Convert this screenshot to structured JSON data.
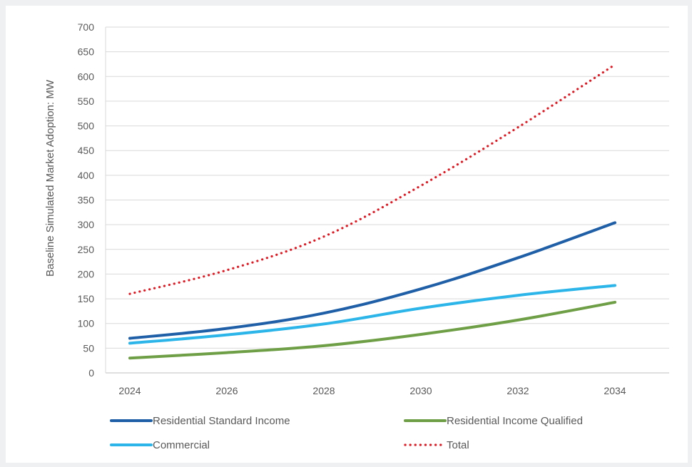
{
  "chart_data": {
    "type": "line",
    "title": "",
    "xlabel": "",
    "ylabel": "Baseline Simulated Market Adoption: MW",
    "x": [
      2024,
      2026,
      2028,
      2030,
      2032,
      2034
    ],
    "xlim": [
      2024,
      2034
    ],
    "ylim": [
      0,
      700
    ],
    "yticks": [
      0,
      50,
      100,
      150,
      200,
      250,
      300,
      350,
      400,
      450,
      500,
      550,
      600,
      650,
      700
    ],
    "grid": "horizontal",
    "legend_position": "bottom",
    "series": [
      {
        "name": "Residential Standard Income",
        "color": "#1f5fa8",
        "style": "solid",
        "values": [
          70,
          90,
          121,
          170,
          233,
          304
        ]
      },
      {
        "name": "Residential Income Qualified",
        "color": "#6e9e45",
        "style": "solid",
        "values": [
          30,
          41,
          55,
          78,
          107,
          143
        ]
      },
      {
        "name": "Commercial",
        "color": "#2bb5e8",
        "style": "solid",
        "values": [
          60,
          77,
          99,
          131,
          157,
          177
        ]
      },
      {
        "name": "Total",
        "color": "#e8141e",
        "style": "dotted",
        "values": [
          160,
          208,
          276,
          379,
          497,
          624
        ]
      }
    ]
  }
}
